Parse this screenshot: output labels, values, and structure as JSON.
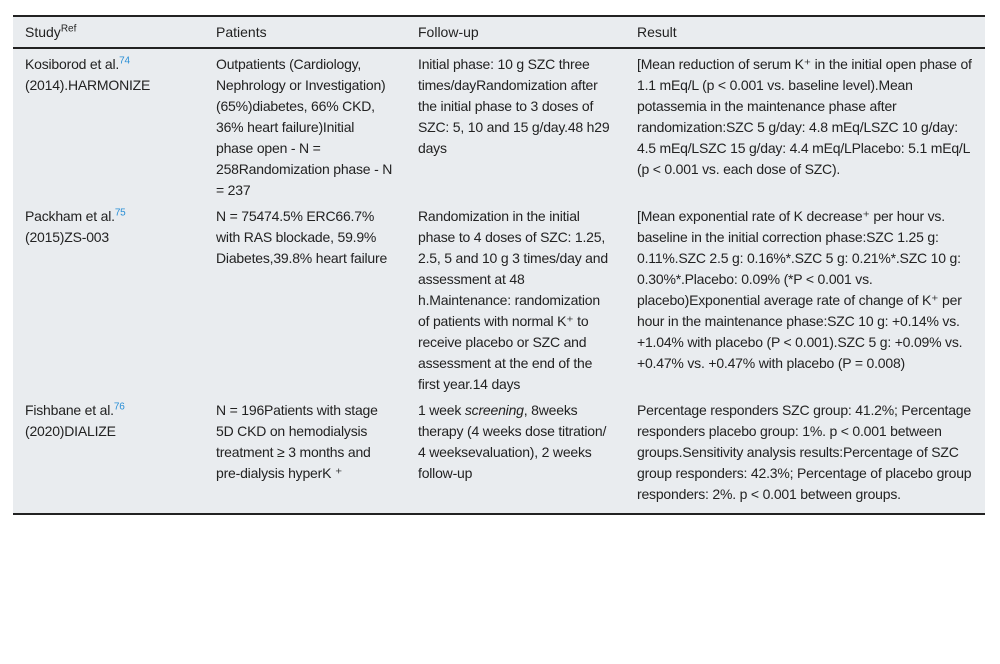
{
  "headers": {
    "study": "Study",
    "study_sup": "Ref",
    "patients": "Patients",
    "followup": "Follow-up",
    "result": "Result"
  },
  "rows": [
    {
      "study_name": "Kosiborod et al.",
      "ref": "74",
      "study_rest": "(2014).HARMONIZE",
      "patients": "Outpatients (Cardiology, Nephrology or Investigation) (65%)diabetes, 66% CKD, 36% heart failure)Initial phase open - N = 258Randomization phase - N = 237",
      "followup": "Initial phase: 10 g SZC three times/dayRandomization after the initial phase to 3 doses of SZC: 5, 10 and 15 g/day.48 h29 days",
      "result": "[Mean reduction of serum K⁺ in the initial open phase of 1.1 mEq/L (p < 0.001 vs. baseline level).Mean potassemia in the maintenance phase after randomization:SZC 5 g/day: 4.8 mEq/LSZC 10 g/day: 4.5 mEq/LSZC 15 g/day: 4.4 mEq/LPlacebo: 5.1 mEq/L (p < 0.001 vs. each dose of SZC)."
    },
    {
      "study_name": "Packham et al.",
      "ref": "75",
      "study_rest": "(2015)ZS-003",
      "patients": "N = 75474.5% ERC66.7% with RAS blockade, 59.9% Diabetes,39.8% heart failure",
      "followup": "Randomization in the initial phase to 4 doses of SZC: 1.25, 2.5, 5 and 10 g 3 times/day and assessment at 48 h.Maintenance: randomization of patients with normal K⁺ to receive placebo or SZC and assessment at the end of the first year.14 days",
      "result": "[Mean exponential rate of K decrease⁺ per hour vs. baseline in the initial correction phase:SZC 1.25 g: 0.11%.SZC 2.5 g: 0.16%*.SZC 5 g: 0.21%*.SZC 10 g: 0.30%*.Placebo: 0.09% (*P < 0.001 vs. placebo)Exponential average rate of change of K⁺ per hour in the maintenance phase:SZC 10 g: +0.14% vs. +1.04% with placebo (P < 0.001).SZC 5 g: +0.09% vs. +0.47% vs. +0.47% with placebo (P = 0.008)"
    },
    {
      "study_name": "Fishbane et al.",
      "ref": "76",
      "study_rest": "(2020)DIALIZE",
      "patients": "N = 196Patients with stage 5D CKD on hemodialysis treatment ≥ 3 months and pre-dialysis hyperK ⁺",
      "followup_pre": "1 week ",
      "followup_em": "screening",
      "followup_post": ", 8weeks therapy (4 weeks dose titration/ 4 weeksevaluation), 2 weeks follow-up",
      "result": "Percentage responders SZC group: 41.2%; Percentage responders placebo group: 1%. p < 0.001 between groups.Sensitivity analysis results:Percentage of SZC group responders: 42.3%; Percentage of placebo group responders: 2%. p < 0.001 between groups."
    }
  ]
}
